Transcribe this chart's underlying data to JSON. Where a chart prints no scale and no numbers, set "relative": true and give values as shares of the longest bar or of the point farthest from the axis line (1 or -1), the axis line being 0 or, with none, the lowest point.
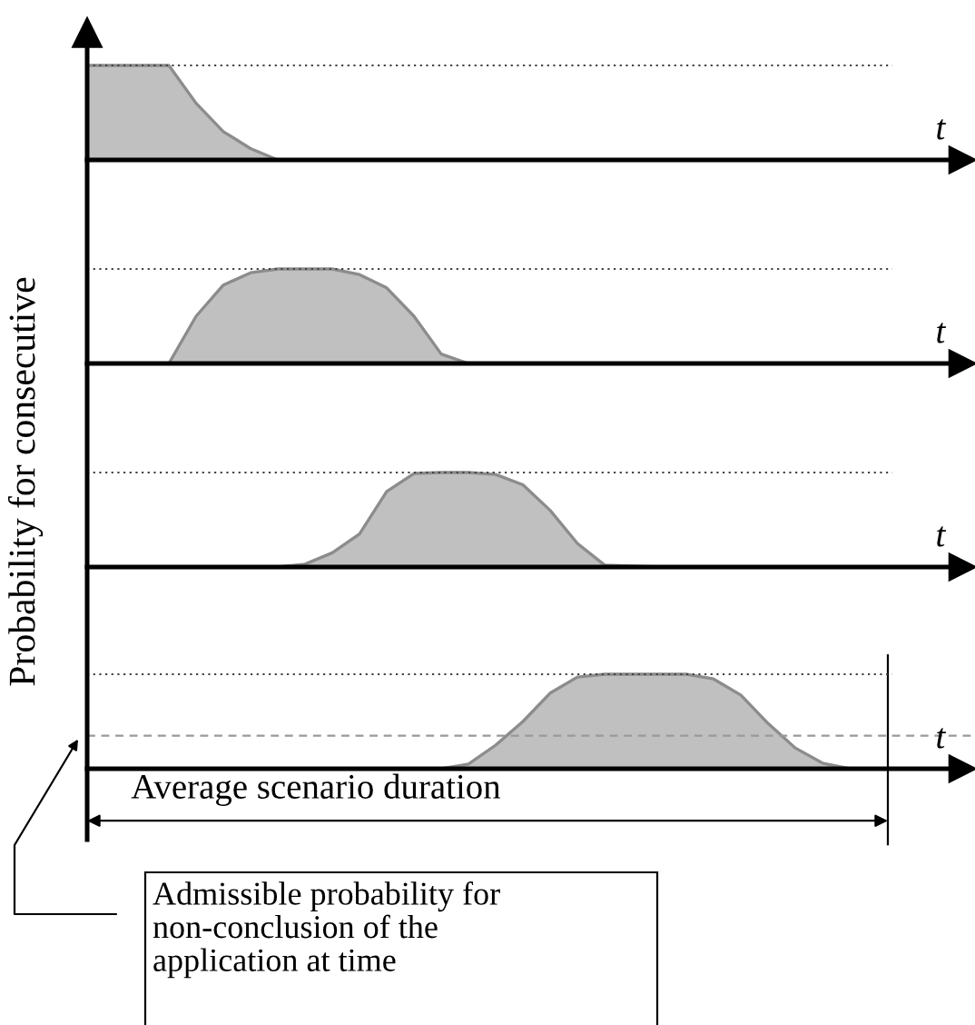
{
  "chart_data": [
    {
      "type": "area",
      "relative": true,
      "ylabel": "Probability for consecutive",
      "xlabel": "t",
      "categories": [
        null,
        null,
        null,
        null,
        null,
        null,
        null,
        null,
        null,
        null,
        null,
        null,
        null,
        null,
        null,
        null,
        null,
        null,
        null,
        null,
        null,
        null,
        null,
        null,
        null,
        null,
        null,
        null,
        null,
        null,
        null,
        null,
        null
      ],
      "series": [
        {
          "color": "#c0c0c0",
          "values": [
            1,
            1,
            1,
            1,
            0.6,
            0.3,
            0.12,
            0,
            0,
            0,
            0,
            0,
            0,
            0,
            0,
            0,
            0,
            0,
            0,
            0,
            0,
            0,
            0,
            0,
            0,
            0,
            0,
            0,
            0,
            0,
            0,
            0,
            0
          ]
        }
      ],
      "ref_lines": [
        {
          "axis": "y",
          "value": 1,
          "line_style": "dotted"
        }
      ]
    },
    {
      "type": "area",
      "relative": true,
      "xlabel": "t",
      "categories": [
        null,
        null,
        null,
        null,
        null,
        null,
        null,
        null,
        null,
        null,
        null,
        null,
        null,
        null,
        null,
        null,
        null,
        null,
        null,
        null,
        null,
        null,
        null,
        null,
        null,
        null,
        null,
        null,
        null,
        null,
        null,
        null,
        null
      ],
      "series": [
        {
          "color": "#c0c0c0",
          "values": [
            0,
            0,
            0,
            0,
            0.5,
            0.83,
            0.96,
            1,
            1,
            1,
            0.94,
            0.8,
            0.5,
            0.1,
            0,
            0,
            0,
            0,
            0,
            0,
            0,
            0,
            0,
            0,
            0,
            0,
            0,
            0,
            0,
            0,
            0,
            0,
            0
          ]
        }
      ],
      "ref_lines": [
        {
          "axis": "y",
          "value": 1,
          "line_style": "dotted"
        }
      ]
    },
    {
      "type": "area",
      "relative": true,
      "xlabel": "t",
      "categories": [
        null,
        null,
        null,
        null,
        null,
        null,
        null,
        null,
        null,
        null,
        null,
        null,
        null,
        null,
        null,
        null,
        null,
        null,
        null,
        null,
        null,
        null,
        null,
        null,
        null,
        null,
        null,
        null,
        null,
        null,
        null,
        null,
        null
      ],
      "series": [
        {
          "color": "#c0c0c0",
          "values": [
            0,
            0,
            0,
            0,
            0,
            0,
            0,
            0,
            0.03,
            0.15,
            0.35,
            0.8,
            0.99,
            1,
            1,
            0.98,
            0.87,
            0.6,
            0.25,
            0.02,
            0.01,
            0,
            0,
            0,
            0,
            0,
            0,
            0,
            0,
            0,
            0,
            0,
            0
          ]
        }
      ],
      "ref_lines": [
        {
          "axis": "y",
          "value": 1,
          "line_style": "dotted"
        }
      ]
    },
    {
      "type": "area",
      "relative": true,
      "xlabel": "t",
      "categories": [
        null,
        null,
        null,
        null,
        null,
        null,
        null,
        null,
        null,
        null,
        null,
        null,
        null,
        null,
        null,
        null,
        null,
        null,
        null,
        null,
        null,
        null,
        null,
        null,
        null,
        null,
        null,
        null,
        null,
        null,
        null,
        null,
        null
      ],
      "series": [
        {
          "color": "#c0c0c0",
          "values": [
            0,
            0,
            0,
            0,
            0,
            0,
            0,
            0,
            0,
            0,
            0,
            0,
            0,
            0,
            0.05,
            0.25,
            0.5,
            0.8,
            0.97,
            1,
            1,
            1,
            1,
            0.95,
            0.78,
            0.48,
            0.22,
            0.06,
            0,
            0,
            0,
            0,
            0
          ]
        }
      ],
      "ref_lines": [
        {
          "axis": "y",
          "value": 1,
          "line_style": "dotted"
        },
        {
          "axis": "y",
          "value": 0.35,
          "line_style": "dashed",
          "color": "#999999"
        }
      ],
      "annotations": [
        "Average scenario duration",
        "Admissible probability for non-conclusion of the application at time"
      ]
    }
  ]
}
